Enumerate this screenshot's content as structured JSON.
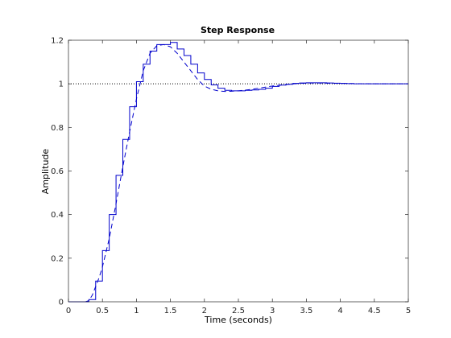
{
  "chart_data": {
    "type": "line",
    "title": "Step Response",
    "xlabel": "Time (seconds)",
    "ylabel": "Amplitude",
    "xlim": [
      0,
      5
    ],
    "ylim": [
      0,
      1.2
    ],
    "xticks": [
      0,
      0.5,
      1,
      1.5,
      2,
      2.5,
      3,
      3.5,
      4,
      4.5,
      5
    ],
    "xtick_labels": [
      "0",
      "0.5",
      "1",
      "1.5",
      "2",
      "2.5",
      "3",
      "3.5",
      "4",
      "4.5",
      "5"
    ],
    "yticks": [
      0,
      0.2,
      0.4,
      0.6,
      0.8,
      1,
      1.2
    ],
    "ytick_labels": [
      "0",
      "0.2",
      "0.4",
      "0.6",
      "0.8",
      "1",
      "1.2"
    ],
    "grid": false,
    "reference_line": {
      "y": 1,
      "style": "dotted",
      "color": "#000000"
    },
    "series": [
      {
        "style": "dashed",
        "color": "#0000cc",
        "x": [
          0,
          0.25,
          0.3,
          0.35,
          0.4,
          0.45,
          0.5,
          0.6,
          0.7,
          0.8,
          0.9,
          1.0,
          1.1,
          1.2,
          1.3,
          1.4,
          1.5,
          1.6,
          1.7,
          1.8,
          1.9,
          2.0,
          2.1,
          2.2,
          2.3,
          2.4,
          2.5,
          2.6,
          2.7,
          2.8,
          3.0,
          3.2,
          3.4,
          3.6,
          3.8,
          4.0,
          4.2,
          4.5,
          4.8,
          5.0
        ],
        "y": [
          0,
          0,
          0.005,
          0.03,
          0.07,
          0.11,
          0.16,
          0.29,
          0.45,
          0.62,
          0.78,
          0.93,
          1.06,
          1.14,
          1.175,
          1.18,
          1.17,
          1.14,
          1.1,
          1.06,
          1.02,
          0.99,
          0.975,
          0.968,
          0.965,
          0.966,
          0.968,
          0.971,
          0.975,
          0.98,
          0.99,
          0.997,
          1.002,
          1.004,
          1.003,
          1.002,
          1.001,
          1.0,
          1.0,
          1.0
        ]
      },
      {
        "style": "step",
        "color": "#0000cc",
        "x": [
          0,
          0.1,
          0.2,
          0.3,
          0.4,
          0.5,
          0.6,
          0.7,
          0.8,
          0.9,
          1.0,
          1.1,
          1.2,
          1.3,
          1.4,
          1.5,
          1.6,
          1.7,
          1.8,
          1.9,
          2.0,
          2.1,
          2.2,
          2.3,
          2.4,
          2.5,
          2.6,
          2.7,
          2.8,
          2.9,
          3.0,
          3.1,
          3.2,
          3.3,
          3.4,
          3.5,
          3.6,
          3.7,
          3.8,
          3.9,
          4.0,
          4.1,
          4.2,
          4.3,
          4.4,
          4.5,
          4.6,
          4.7,
          4.8,
          4.9,
          5.0
        ],
        "y": [
          0,
          0,
          0,
          0.01,
          0.095,
          0.235,
          0.4,
          0.58,
          0.745,
          0.895,
          1.01,
          1.09,
          1.15,
          1.18,
          1.18,
          1.19,
          1.16,
          1.13,
          1.09,
          1.05,
          1.02,
          0.995,
          0.98,
          0.97,
          0.968,
          0.968,
          0.97,
          0.972,
          0.975,
          0.98,
          0.988,
          0.994,
          0.998,
          1.002,
          1.004,
          1.005,
          1.005,
          1.005,
          1.004,
          1.003,
          1.002,
          1.001,
          1.0,
          1.0,
          1.0,
          1.0,
          1.0,
          1.0,
          1.0,
          1.0,
          1.0
        ]
      }
    ]
  }
}
